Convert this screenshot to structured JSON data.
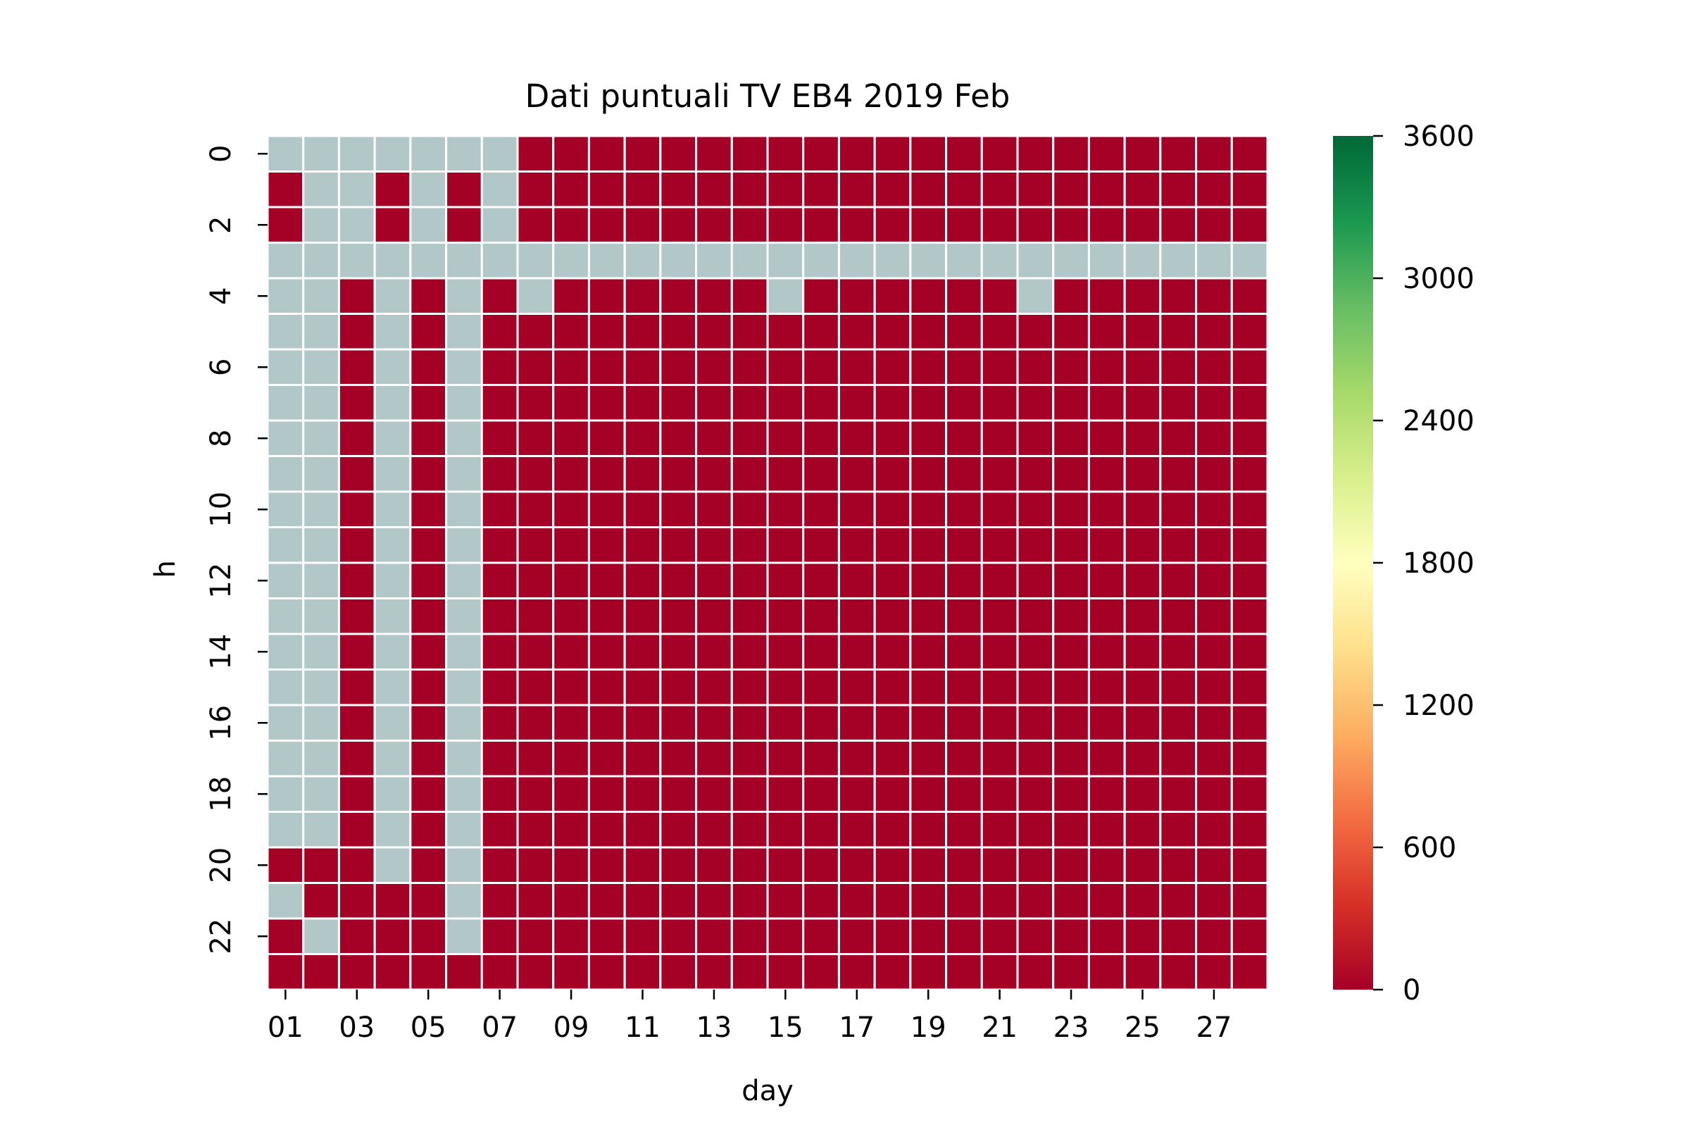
{
  "chart_data": {
    "type": "heatmap",
    "title": "Dati puntuali TV EB4 2019 Feb",
    "xlabel": "day",
    "ylabel": "h",
    "x_categories": [
      "01",
      "02",
      "03",
      "04",
      "05",
      "06",
      "07",
      "08",
      "09",
      "10",
      "11",
      "12",
      "13",
      "14",
      "15",
      "16",
      "17",
      "18",
      "19",
      "20",
      "21",
      "22",
      "23",
      "24",
      "25",
      "26",
      "27",
      "28"
    ],
    "y_categories": [
      "0",
      "1",
      "2",
      "3",
      "4",
      "5",
      "6",
      "7",
      "8",
      "9",
      "10",
      "11",
      "12",
      "13",
      "14",
      "15",
      "16",
      "17",
      "18",
      "19",
      "20",
      "21",
      "22",
      "23"
    ],
    "x_tick_labels_shown": [
      "01",
      "03",
      "05",
      "07",
      "09",
      "11",
      "13",
      "15",
      "17",
      "19",
      "21",
      "23",
      "25",
      "27"
    ],
    "y_tick_labels_shown": [
      "0",
      "2",
      "4",
      "6",
      "8",
      "10",
      "12",
      "14",
      "16",
      "18",
      "20",
      "22"
    ],
    "colorbar": {
      "min": 0,
      "max": 3600,
      "ticks": [
        "0",
        "600",
        "1200",
        "1800",
        "2400",
        "3000",
        "3600"
      ],
      "colormap": "RdYlGn",
      "stops": [
        "#a50026",
        "#d73027",
        "#f46d43",
        "#fdae61",
        "#fee08b",
        "#ffffbf",
        "#d9ef8b",
        "#a6d96a",
        "#66bd63",
        "#1a9850",
        "#006837"
      ]
    },
    "missing_color": "#b2c8c8",
    "cell_gap_color": "#ffffff",
    "value_note": "all present cells are 0",
    "missing_cells": {
      "0": [
        1,
        2,
        3,
        4,
        5,
        6,
        7
      ],
      "1": [
        2,
        3,
        5,
        7
      ],
      "2": [
        2,
        3,
        5,
        7
      ],
      "3": [
        1,
        2,
        3,
        4,
        5,
        6,
        7,
        8,
        9,
        10,
        11,
        12,
        13,
        14,
        15,
        16,
        17,
        18,
        19,
        20,
        21,
        22,
        23,
        24,
        25,
        26,
        27,
        28
      ],
      "4": [
        1,
        2,
        4,
        6,
        8,
        15,
        22
      ],
      "5": [
        1,
        2,
        4,
        6
      ],
      "6": [
        1,
        2,
        4,
        6
      ],
      "7": [
        1,
        2,
        4,
        6
      ],
      "8": [
        1,
        2,
        4,
        6
      ],
      "9": [
        1,
        2,
        4,
        6
      ],
      "10": [
        1,
        2,
        4,
        6
      ],
      "11": [
        1,
        2,
        4,
        6
      ],
      "12": [
        1,
        2,
        4,
        6
      ],
      "13": [
        1,
        2,
        4,
        6
      ],
      "14": [
        1,
        2,
        4,
        6
      ],
      "15": [
        1,
        2,
        4,
        6
      ],
      "16": [
        1,
        2,
        4,
        6
      ],
      "17": [
        1,
        2,
        4,
        6
      ],
      "18": [
        1,
        2,
        4,
        6
      ],
      "19": [
        1,
        2,
        4,
        6
      ],
      "20": [
        4,
        6
      ],
      "21": [
        1,
        6
      ],
      "22": [
        2,
        6
      ],
      "23": []
    }
  }
}
